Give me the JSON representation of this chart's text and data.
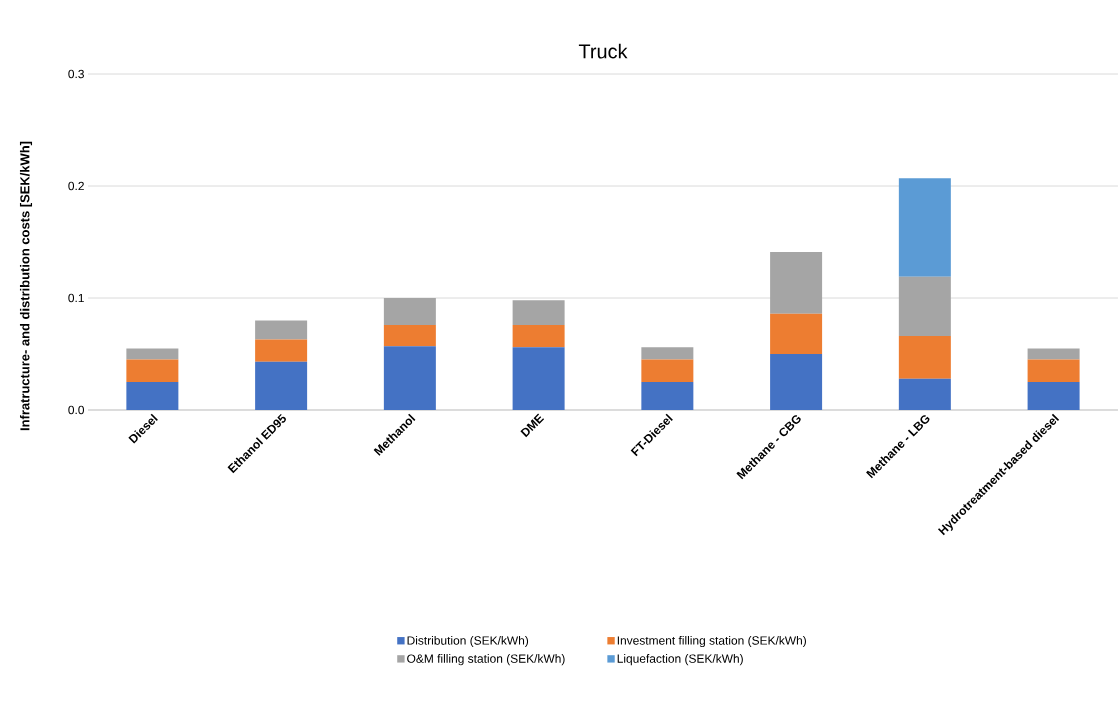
{
  "chart_data": {
    "type": "bar",
    "title": "Truck",
    "ylabel": "Infratructure- and distribution costs [SEK/kWh]",
    "categories": [
      "Diesel",
      "Ethanol ED95",
      "Methanol",
      "DME",
      "FT-Diesel",
      "Methane - CBG",
      "Methane - LBG",
      "Hydrotreatment-based diesel"
    ],
    "stacked": true,
    "ylim": [
      0,
      0.3
    ],
    "yticks": [
      {
        "value": 0,
        "label": "0.0"
      },
      {
        "value": 0.1,
        "label": "0.1"
      },
      {
        "value": 0.2,
        "label": "0.2"
      },
      {
        "value": 0.3,
        "label": "0.3"
      }
    ],
    "grid": "y",
    "legend": "bottom",
    "series": [
      {
        "name": "Distribution (SEK/kWh)",
        "color": "#4472c4",
        "values": [
          0.025,
          0.043,
          0.057,
          0.056,
          0.025,
          0.05,
          0.028,
          0.025
        ]
      },
      {
        "name": "Investment filling station (SEK/kWh)",
        "color": "#ed7d31",
        "values": [
          0.02,
          0.02,
          0.019,
          0.02,
          0.02,
          0.036,
          0.038,
          0.02
        ]
      },
      {
        "name": "O&M filling station (SEK/kWh)",
        "color": "#a5a5a5",
        "values": [
          0.01,
          0.017,
          0.024,
          0.022,
          0.011,
          0.055,
          0.053,
          0.01
        ]
      },
      {
        "name": "Liquefaction (SEK/kWh)",
        "color": "#5b9bd5",
        "values": [
          0,
          0,
          0,
          0,
          0,
          0,
          0.088,
          0
        ]
      }
    ]
  }
}
